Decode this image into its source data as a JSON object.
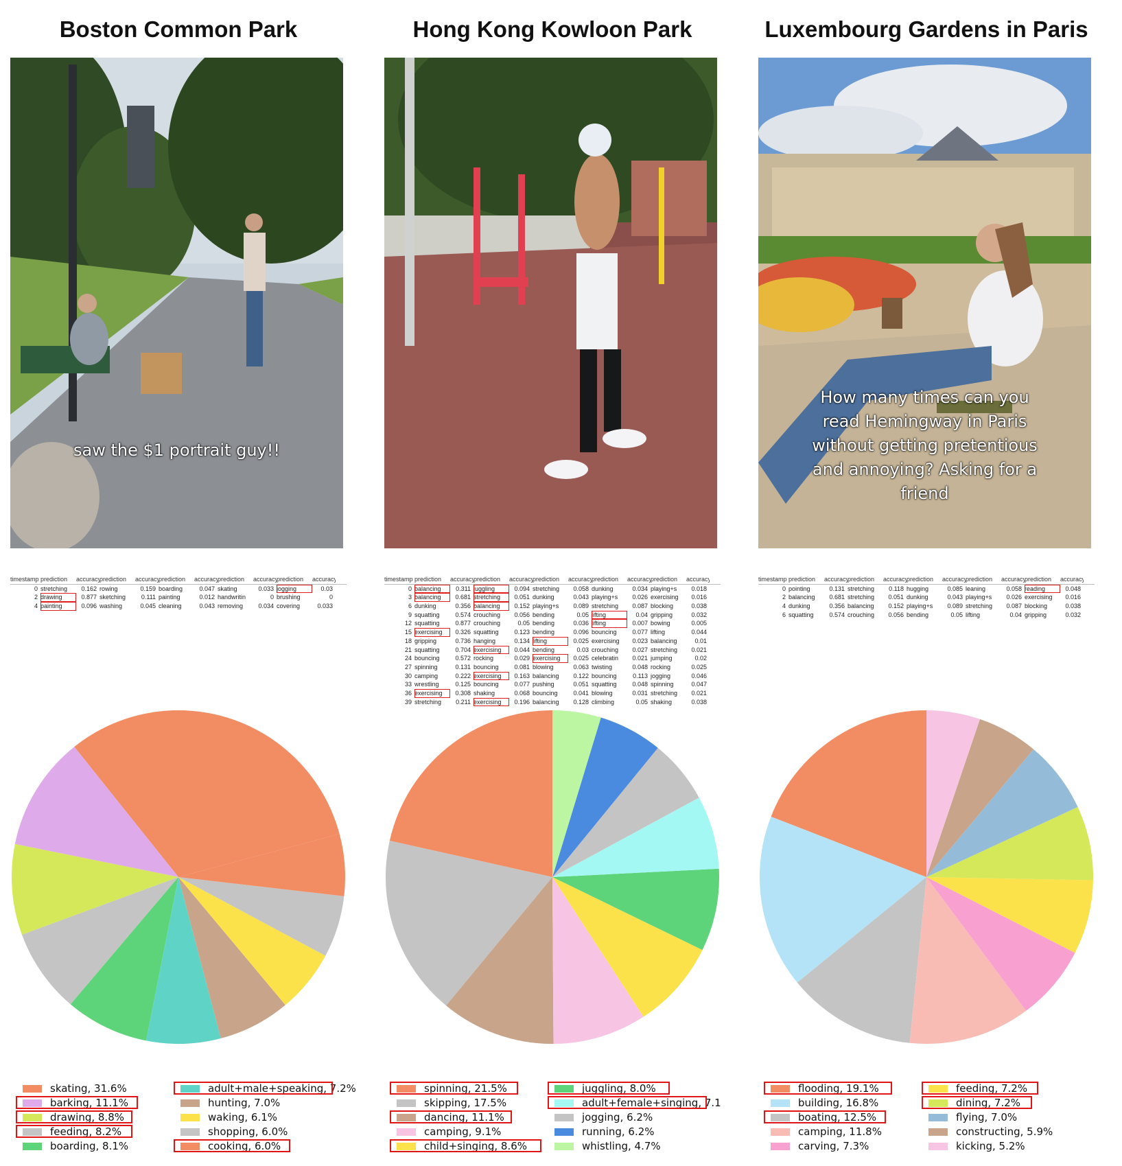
{
  "panels": [
    {
      "title": "Boston Common Park",
      "caption_lines": [
        "saw the $1 portrait guy!!"
      ],
      "table": {
        "headers": [
          "timestamp",
          "prediction",
          "accuracy_",
          "prediction",
          "accuracy_",
          "prediction",
          "accuracy_",
          "prediction",
          "accuracy",
          "prediction",
          "accuracy_5"
        ],
        "rows": [
          [
            "0",
            "stretching",
            "0.162",
            "rowing",
            "0.159",
            "boarding",
            "0.047",
            "skating",
            "0.033",
            "jogging",
            "0.03"
          ],
          [
            "2",
            "drawing",
            "0.877",
            "sketching",
            "0.111",
            "painting",
            "0.012",
            "handwritin",
            "0",
            "brushing",
            "0"
          ],
          [
            "4",
            "painting",
            "0.096",
            "washing",
            "0.045",
            "cleaning",
            "0.043",
            "removing",
            "0.034",
            "covering",
            "0.033"
          ]
        ],
        "highlights": [
          [
            0,
            9
          ],
          [
            1,
            1
          ],
          [
            2,
            1
          ]
        ]
      }
    },
    {
      "title": "Hong Kong Kowloon Park",
      "caption_lines": [],
      "table": {
        "headers": [
          "timestamp",
          "prediction",
          "accuracy_",
          "prediction",
          "accuracy_",
          "prediction",
          "accuracy_",
          "prediction",
          "accuracy_",
          "prediction",
          "accuracy_5"
        ],
        "rows": [
          [
            "0",
            "balancing",
            "0.311",
            "juggling",
            "0.094",
            "stretching",
            "0.058",
            "dunking",
            "0.034",
            "playing+s",
            "0.018"
          ],
          [
            "3",
            "balancing",
            "0.681",
            "stretching",
            "0.051",
            "dunking",
            "0.043",
            "playing+s",
            "0.026",
            "exercising",
            "0.016"
          ],
          [
            "6",
            "dunking",
            "0.356",
            "balancing",
            "0.152",
            "playing+s",
            "0.089",
            "stretching",
            "0.087",
            "blocking",
            "0.038"
          ],
          [
            "9",
            "squatting",
            "0.574",
            "crouching",
            "0.056",
            "bending",
            "0.05",
            "lifting",
            "0.04",
            "gripping",
            "0.032"
          ],
          [
            "12",
            "squatting",
            "0.877",
            "crouching",
            "0.05",
            "bending",
            "0.036",
            "lifting",
            "0.007",
            "bowing",
            "0.005"
          ],
          [
            "15",
            "exercising",
            "0.326",
            "squatting",
            "0.123",
            "bending",
            "0.096",
            "bouncing",
            "0.077",
            "lifting",
            "0.044"
          ],
          [
            "18",
            "gripping",
            "0.736",
            "hanging",
            "0.134",
            "lifting",
            "0.025",
            "exercising",
            "0.023",
            "balancing",
            "0.01"
          ],
          [
            "21",
            "squatting",
            "0.704",
            "exercising",
            "0.044",
            "bending",
            "0.03",
            "crouching",
            "0.027",
            "stretching",
            "0.021"
          ],
          [
            "24",
            "bouncing",
            "0.572",
            "rocking",
            "0.029",
            "exercising",
            "0.025",
            "celebratin",
            "0.021",
            "jumping",
            "0.02"
          ],
          [
            "27",
            "spinning",
            "0.131",
            "bouncing",
            "0.081",
            "blowing",
            "0.063",
            "twisting",
            "0.048",
            "rocking",
            "0.025"
          ],
          [
            "30",
            "camping",
            "0.222",
            "exercising",
            "0.163",
            "balancing",
            "0.122",
            "bouncing",
            "0.113",
            "jogging",
            "0.046"
          ],
          [
            "33",
            "wrestling",
            "0.125",
            "bouncing",
            "0.077",
            "pushing",
            "0.051",
            "squatting",
            "0.048",
            "spinning",
            "0.047"
          ],
          [
            "36",
            "exercising",
            "0.308",
            "shaking",
            "0.068",
            "bouncing",
            "0.041",
            "blowing",
            "0.031",
            "stretching",
            "0.021"
          ],
          [
            "39",
            "stretching",
            "0.211",
            "exercising",
            "0.196",
            "balancing",
            "0.128",
            "climbing",
            "0.05",
            "shaking",
            "0.038"
          ]
        ],
        "highlights": [
          [
            0,
            1
          ],
          [
            1,
            1
          ],
          [
            5,
            1
          ],
          [
            12,
            1
          ],
          [
            0,
            3
          ],
          [
            1,
            3
          ],
          [
            2,
            3
          ],
          [
            7,
            3
          ],
          [
            10,
            3
          ],
          [
            13,
            3
          ],
          [
            6,
            5
          ],
          [
            8,
            5
          ],
          [
            3,
            7
          ],
          [
            4,
            7
          ]
        ]
      }
    },
    {
      "title": "Luxembourg Gardens in Paris",
      "caption_lines": [
        "How many times can you",
        "read Hemingway in Paris",
        "without getting pretentious",
        "and annoying? Asking for a",
        "friend"
      ],
      "table": {
        "headers": [
          "timestamp",
          "prediction",
          "accuracy_",
          "prediction",
          "accuracy_",
          "prediction",
          "accuracy_",
          "prediction",
          "accuracy_",
          "prediction",
          "accuracy_5"
        ],
        "rows": [
          [
            "0",
            "pointing",
            "0.131",
            "stretching",
            "0.118",
            "hugging",
            "0.085",
            "leaning",
            "0.058",
            "reading",
            "0.048"
          ],
          [
            "2",
            "balancing",
            "0.681",
            "stretching",
            "0.051",
            "dunking",
            "0.043",
            "playing+s",
            "0.026",
            "exercising",
            "0.016"
          ],
          [
            "4",
            "dunking",
            "0.356",
            "balancing",
            "0.152",
            "playing+s",
            "0.089",
            "stretching",
            "0.087",
            "blocking",
            "0.038"
          ],
          [
            "6",
            "squatting",
            "0.574",
            "crouching",
            "0.056",
            "bending",
            "0.05",
            "lifting",
            "0.04",
            "gripping",
            "0.032"
          ]
        ],
        "highlights": [
          [
            0,
            9
          ]
        ]
      }
    }
  ],
  "chart_data": [
    {
      "type": "pie",
      "title": "",
      "labels": [
        "skating",
        "barking",
        "drawing",
        "feeding",
        "boarding",
        "adult+male+speaking",
        "hunting",
        "waking",
        "shopping",
        "cooking"
      ],
      "values": [
        31.6,
        11.1,
        8.8,
        8.2,
        8.1,
        7.2,
        7.0,
        6.1,
        6.0,
        6.0
      ],
      "colors": [
        "#f28c62",
        "#dfaaea",
        "#d5e85a",
        "#c4c4c4",
        "#5ed47a",
        "#5fd4c6",
        "#c8a48a",
        "#fbe24a",
        "#c4c4c4",
        "#f28c62"
      ],
      "legend_texts": [
        "skating, 31.6%",
        "barking, 11.1%",
        "drawing, 8.8%",
        "feeding, 8.2%",
        "boarding, 8.1%",
        "adult+male+speaking, 7.2%",
        "hunting, 7.0%",
        "waking, 6.1%",
        "shopping, 6.0%",
        "cooking, 6.0%"
      ],
      "legend_highlighted": [
        false,
        true,
        true,
        true,
        false,
        true,
        false,
        false,
        false,
        true
      ],
      "start_angle_deg": 101.8,
      "direction": "clockwise-from-skating-end"
    },
    {
      "type": "pie",
      "title": "",
      "labels": [
        "spinning",
        "skipping",
        "dancing",
        "camping",
        "child+singing",
        "juggling",
        "adult+female+singing",
        "jogging",
        "running",
        "whistling"
      ],
      "values": [
        21.5,
        17.5,
        11.1,
        9.1,
        8.6,
        8.0,
        7.1,
        6.2,
        6.2,
        4.7
      ],
      "colors": [
        "#f28c62",
        "#c4c4c4",
        "#c8a48a",
        "#f8c4e4",
        "#fbe24a",
        "#5ed47a",
        "#a4f8f4",
        "#c4c4c4",
        "#4a8be0",
        "#bdf6a2"
      ],
      "legend_texts": [
        "spinning, 21.5%",
        "skipping, 17.5%",
        "dancing, 11.1%",
        "camping, 9.1%",
        "child+singing, 8.6%",
        "juggling, 8.0%",
        "adult+female+singing, 7.1",
        "jogging, 6.2%",
        "running, 6.2%",
        "whistling, 4.7%"
      ],
      "legend_highlighted": [
        true,
        false,
        true,
        false,
        true,
        true,
        true,
        false,
        false,
        false
      ],
      "start_angle_deg": 90
    },
    {
      "type": "pie",
      "title": "",
      "labels": [
        "flooding",
        "building",
        "boating",
        "camping",
        "carving",
        "feeding",
        "dining",
        "flying",
        "constructing",
        "kicking"
      ],
      "values": [
        19.1,
        16.8,
        12.5,
        11.8,
        7.3,
        7.2,
        7.2,
        7.0,
        5.9,
        5.2
      ],
      "colors": [
        "#f28c62",
        "#b4e2f6",
        "#c4c4c4",
        "#f8bcb4",
        "#f8a0d0",
        "#fbe24a",
        "#d5e85a",
        "#94bcd8",
        "#c8a48a",
        "#f8c4e4"
      ],
      "legend_texts": [
        "flooding, 19.1%",
        "building, 16.8%",
        "boating, 12.5%",
        "camping, 11.8%",
        "carving, 7.3%",
        "feeding, 7.2%",
        "dining, 7.2%",
        "flying, 7.0%",
        "constructing, 5.9%",
        "kicking, 5.2%"
      ],
      "legend_highlighted": [
        true,
        false,
        true,
        false,
        false,
        true,
        true,
        false,
        false,
        false
      ],
      "start_angle_deg": 90
    }
  ]
}
